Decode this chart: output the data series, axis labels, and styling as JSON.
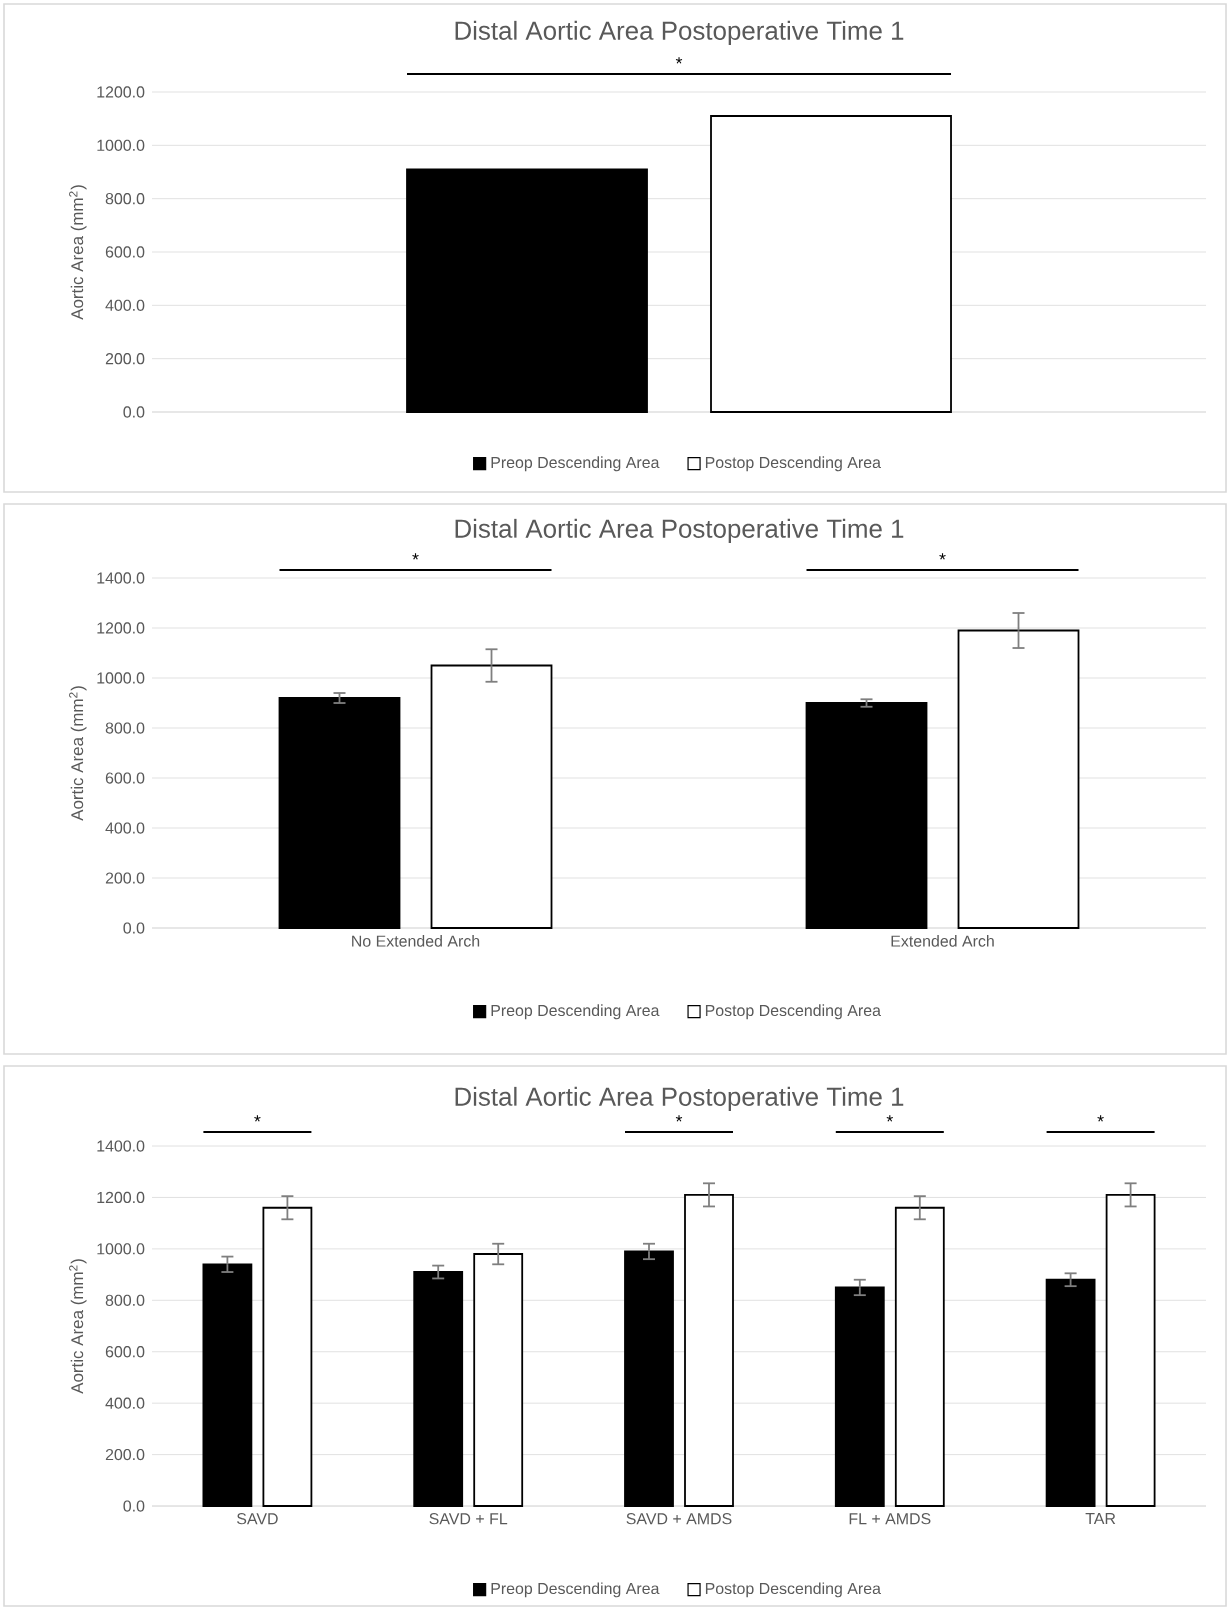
{
  "chart_data": [
    {
      "type": "bar",
      "title": "Distal Aortic Area Postoperative Time 1",
      "ylabel": "Aortic Area (mm$^{2}$)",
      "categories": [
        null
      ],
      "tick_labels": "y",
      "series": [
        {
          "name": "Preop Descending Area",
          "color": "#000000",
          "values": [
            910
          ]
        },
        {
          "name": "Postop Descending Area",
          "color": "#ffffff",
          "values": [
            1110
          ]
        }
      ],
      "ylim": [
        0,
        1200
      ],
      "yticks": [
        {
          "value": 0,
          "label": "0.0"
        },
        {
          "value": 200,
          "label": "200.0"
        },
        {
          "value": 400,
          "label": "400.0"
        },
        {
          "value": 600,
          "label": "600.0"
        },
        {
          "value": 800,
          "label": "800.0"
        },
        {
          "value": 1000,
          "label": "1000.0"
        },
        {
          "value": 1200,
          "label": "1200.0"
        }
      ],
      "grid": "y",
      "legend": "bottom",
      "annotations": [
        "*"
      ]
    },
    {
      "type": "bar",
      "title": "Distal Aortic Area Postoperative Time 1",
      "ylabel": "Aortic Area (mm$^{2}$)",
      "categories": [
        "No Extended Arch",
        "Extended Arch"
      ],
      "series": [
        {
          "name": "Preop Descending Area",
          "color": "#000000",
          "values": [
            920,
            900
          ],
          "errors": [
            20,
            15
          ]
        },
        {
          "name": "Postop Descending Area",
          "color": "#ffffff",
          "values": [
            1050,
            1190
          ],
          "errors": [
            65,
            70
          ]
        }
      ],
      "ylim": [
        0,
        1400
      ],
      "yticks": [
        {
          "value": 0,
          "label": "0.0"
        },
        {
          "value": 200,
          "label": "200.0"
        },
        {
          "value": 400,
          "label": "400.0"
        },
        {
          "value": 600,
          "label": "600.0"
        },
        {
          "value": 800,
          "label": "800.0"
        },
        {
          "value": 1000,
          "label": "1000.0"
        },
        {
          "value": 1200,
          "label": "1200.0"
        },
        {
          "value": 1400,
          "label": "1400.0"
        }
      ],
      "grid": "y",
      "legend": "bottom",
      "annotations": [
        "*",
        "*"
      ]
    },
    {
      "type": "bar",
      "title": "Distal Aortic Area Postoperative Time 1",
      "ylabel": "Aortic Area (mm$^{2}$)",
      "categories": [
        "SAVD",
        "SAVD + FL",
        "SAVD + AMDS",
        "FL + AMDS",
        "TAR"
      ],
      "series": [
        {
          "name": "Preop Descending Area",
          "color": "#000000",
          "values": [
            940,
            910,
            990,
            850,
            880
          ],
          "errors": [
            30,
            25,
            30,
            30,
            25
          ]
        },
        {
          "name": "Postop Descending Area",
          "color": "#ffffff",
          "values": [
            1160,
            980,
            1210,
            1160,
            1210
          ],
          "errors": [
            45,
            40,
            45,
            45,
            45
          ]
        }
      ],
      "ylim": [
        0,
        1400
      ],
      "yticks": [
        {
          "value": 0,
          "label": "0.0"
        },
        {
          "value": 200,
          "label": "200.0"
        },
        {
          "value": 400,
          "label": "400.0"
        },
        {
          "value": 600,
          "label": "600.0"
        },
        {
          "value": 800,
          "label": "800.0"
        },
        {
          "value": 1000,
          "label": "1000.0"
        },
        {
          "value": 1200,
          "label": "1200.0"
        },
        {
          "value": 1400,
          "label": "1400.0"
        }
      ],
      "grid": "y",
      "legend": "bottom",
      "annotations": [
        "*",
        "*",
        "*",
        "*"
      ]
    }
  ]
}
